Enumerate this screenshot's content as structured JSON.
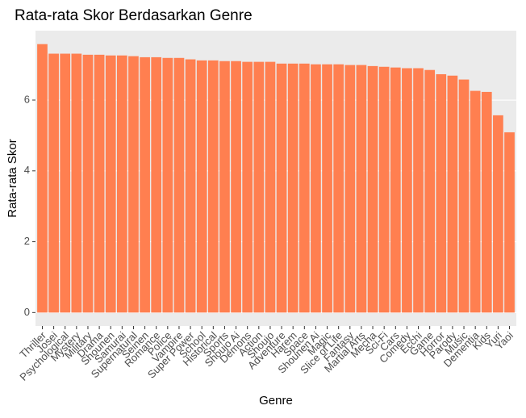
{
  "chart_data": {
    "type": "bar",
    "title": "Rata-rata Skor Berdasarkan Genre",
    "x_label": "Genre",
    "y_label": "Rata-rata Skor",
    "categories": [
      "Thriller",
      "Josei",
      "Psychological",
      "Mystery",
      "Military",
      "Drama",
      "Shounen",
      "Samurai",
      "Supernatural",
      "Seinen",
      "Romance",
      "Police",
      "Vampire",
      "Super Power",
      "School",
      "Historical",
      "Sports",
      "Shoujo Ai",
      "Demons",
      "Action",
      "Shoujo",
      "Adventure",
      "Harem",
      "Space",
      "Shounen Ai",
      "Magic",
      "Slice of Life",
      "Fantasy",
      "Martial Arts",
      "Mecha",
      "Sci-Fi",
      "Cars",
      "Comedy",
      "Ecchi",
      "Game",
      "Horror",
      "Parody",
      "Music",
      "Dementia",
      "Kids",
      "Yuri",
      "Yaoi"
    ],
    "values": [
      7.58,
      7.31,
      7.31,
      7.31,
      7.28,
      7.28,
      7.26,
      7.26,
      7.24,
      7.21,
      7.21,
      7.19,
      7.19,
      7.15,
      7.12,
      7.12,
      7.1,
      7.1,
      7.08,
      7.08,
      7.08,
      7.03,
      7.03,
      7.03,
      7.01,
      7.01,
      7.01,
      6.99,
      6.99,
      6.96,
      6.94,
      6.92,
      6.9,
      6.9,
      6.85,
      6.73,
      6.69,
      6.58,
      6.26,
      6.23,
      5.57,
      5.09
    ],
    "color": "#ff7f50",
    "ylim": [
      -0.38,
      7.96
    ],
    "yticks": [
      0,
      2,
      4,
      6
    ],
    "grid": true
  }
}
